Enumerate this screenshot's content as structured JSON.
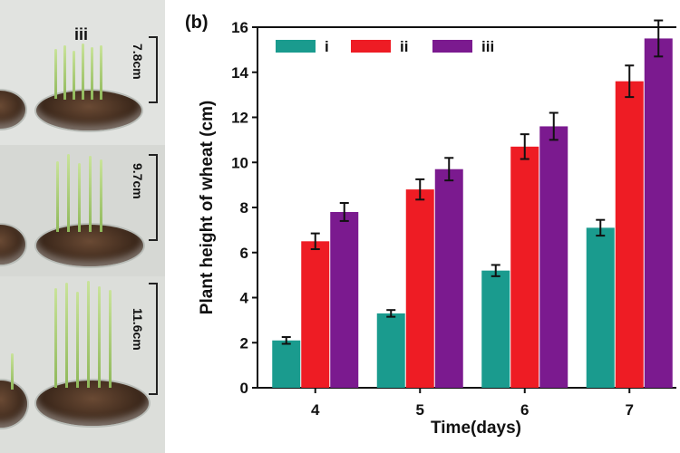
{
  "photo": {
    "group_label": "iii",
    "heights": [
      "7.8cm",
      "9.7cm",
      "11.6cm"
    ]
  },
  "panel_label": "(b)",
  "chart_data": {
    "type": "bar",
    "title": "",
    "xlabel": "Time(days)",
    "ylabel": "Plant height of wheat (cm)",
    "categories": [
      "4",
      "5",
      "6",
      "7"
    ],
    "ylim": [
      0,
      16
    ],
    "yticks": [
      0,
      2,
      4,
      6,
      8,
      10,
      12,
      14,
      16
    ],
    "legend_position": "top-left",
    "series": [
      {
        "name": "i",
        "color": "#1a9b8e",
        "values": [
          2.1,
          3.3,
          5.2,
          7.1
        ],
        "errors": [
          0.15,
          0.15,
          0.25,
          0.35
        ]
      },
      {
        "name": "ii",
        "color": "#ee1c24",
        "values": [
          6.5,
          8.8,
          10.7,
          13.6
        ],
        "errors": [
          0.35,
          0.45,
          0.55,
          0.7
        ]
      },
      {
        "name": "iii",
        "color": "#7b1a8f",
        "values": [
          7.8,
          9.7,
          11.6,
          15.5
        ],
        "errors": [
          0.4,
          0.5,
          0.6,
          0.8
        ]
      }
    ]
  }
}
